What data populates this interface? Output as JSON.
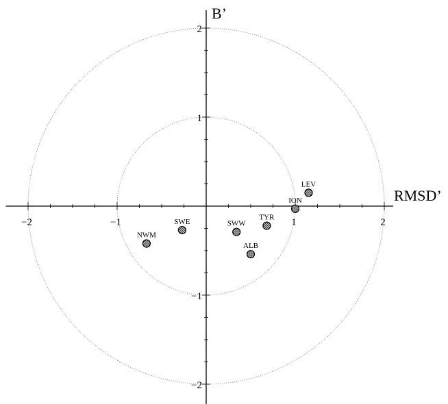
{
  "chart_data": {
    "type": "scatter",
    "title": "",
    "xlabel": "RMSD’",
    "ylabel": "B’",
    "xlim": [
      -2.25,
      2.1
    ],
    "ylim": [
      -2.25,
      2.2
    ],
    "grid": false,
    "legend": "none",
    "reference_circles": [
      1,
      2
    ],
    "x_ticks": [
      {
        "value": -2,
        "label": "−2"
      },
      {
        "value": -1,
        "label": "−1"
      },
      {
        "value": 1,
        "label": "1"
      },
      {
        "value": 2,
        "label": "2"
      }
    ],
    "y_ticks": [
      {
        "value": 2,
        "label": "2"
      },
      {
        "value": 1,
        "label": "1"
      },
      {
        "value": -1,
        "label": "−1"
      },
      {
        "value": -2,
        "label": "−2"
      }
    ],
    "points": [
      {
        "label": "LEV",
        "x": 1.15,
        "y": 0.15
      },
      {
        "label": "ION",
        "x": 1.0,
        "y": -0.03
      },
      {
        "label": "TYR",
        "x": 0.68,
        "y": -0.22
      },
      {
        "label": "SWW",
        "x": 0.34,
        "y": -0.29
      },
      {
        "label": "ALB",
        "x": 0.5,
        "y": -0.54
      },
      {
        "label": "SWE",
        "x": -0.27,
        "y": -0.27
      },
      {
        "label": "NWM",
        "x": -0.67,
        "y": -0.42
      }
    ],
    "colors": {
      "axis": "#000000",
      "circle": "#999999",
      "marker_fill": "#9a9a9a",
      "marker_stroke": "#000000"
    }
  }
}
